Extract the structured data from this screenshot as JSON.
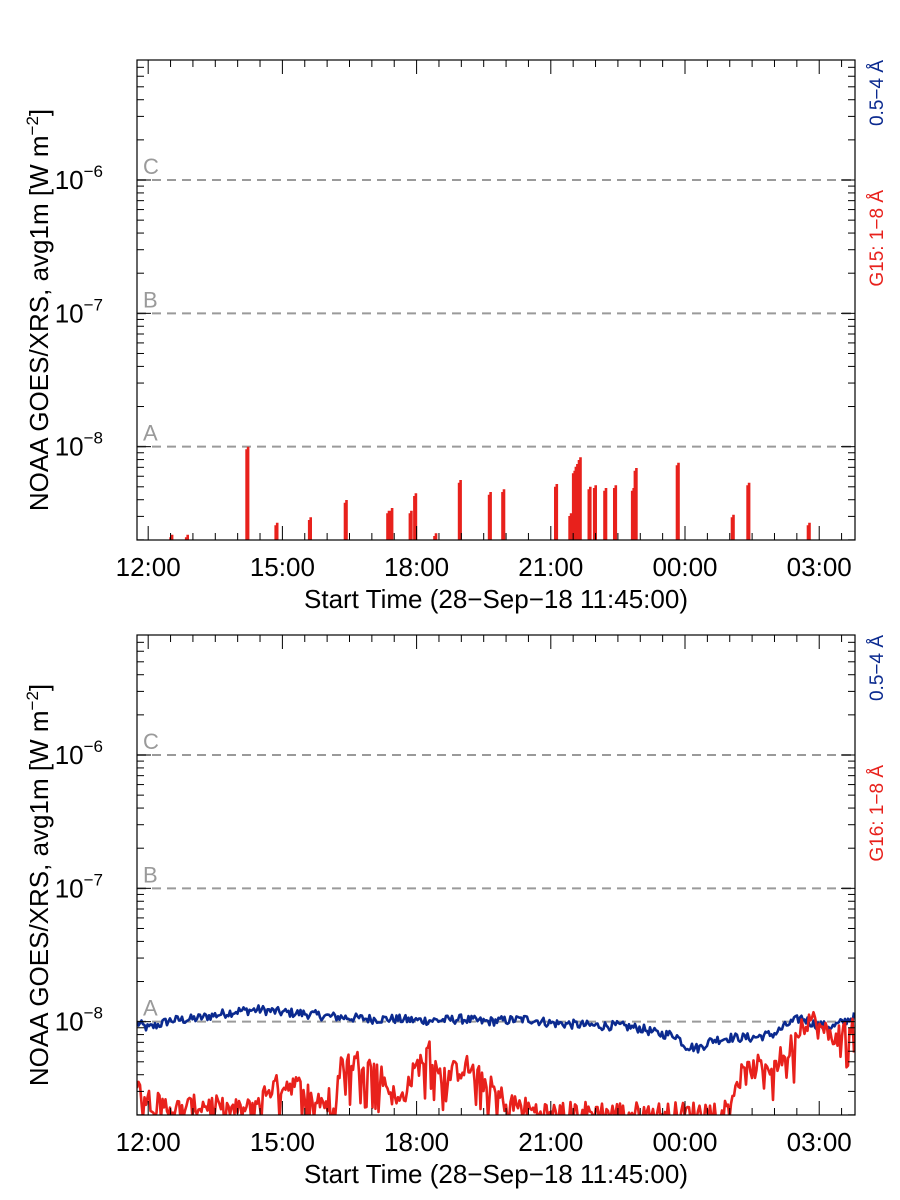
{
  "chart_data": [
    {
      "type": "line",
      "ylabel_main": "NOAA GOES/XRS, avg1m [W m",
      "ylabel_sup": "−2",
      "ylabel_close": "]",
      "xlabel": "Start Time (28−Sep−18 11:45:00)",
      "x_range_hours": [
        11.75,
        27.8
      ],
      "y_log_range": [
        -8.7,
        -5.1
      ],
      "x_ticks": [
        {
          "h": 12,
          "label": "12:00"
        },
        {
          "h": 15,
          "label": "15:00"
        },
        {
          "h": 18,
          "label": "18:00"
        },
        {
          "h": 21,
          "label": "21:00"
        },
        {
          "h": 24,
          "label": "00:00"
        },
        {
          "h": 27,
          "label": "03:00"
        }
      ],
      "y_ticks": [
        {
          "exp": -8,
          "base": "10",
          "sup": "−8"
        },
        {
          "exp": -7,
          "base": "10",
          "sup": "−7"
        },
        {
          "exp": -6,
          "base": "10",
          "sup": "−6"
        }
      ],
      "flare_levels": [
        {
          "exp": -8,
          "label": "A"
        },
        {
          "exp": -7,
          "label": "B"
        },
        {
          "exp": -6,
          "label": "C"
        }
      ],
      "right_labels": {
        "high": "0.5−4 Å",
        "low": "G15: 1−8 Å"
      },
      "series": [
        {
          "name": "G15: 1−8 Å",
          "color": "#e8211c",
          "kind": "spikes",
          "base_log": -8.7,
          "spikes": [
            [
              12.5,
              -8.68
            ],
            [
              12.85,
              -8.68
            ],
            [
              14.2,
              -8.02
            ],
            [
              14.85,
              -8.59
            ],
            [
              15.6,
              -8.55
            ],
            [
              16.4,
              -8.42
            ],
            [
              17.35,
              -8.5
            ],
            [
              17.42,
              -8.48
            ],
            [
              17.85,
              -8.5
            ],
            [
              17.95,
              -8.37
            ],
            [
              18.4,
              -8.67
            ],
            [
              18.95,
              -8.27
            ],
            [
              19.62,
              -8.36
            ],
            [
              19.92,
              -8.34
            ],
            [
              21.1,
              -8.3
            ],
            [
              21.42,
              -8.52
            ],
            [
              21.5,
              -8.2
            ],
            [
              21.56,
              -8.15
            ],
            [
              21.63,
              -8.1
            ],
            [
              21.85,
              -8.32
            ],
            [
              21.97,
              -8.31
            ],
            [
              22.2,
              -8.33
            ],
            [
              22.42,
              -8.31
            ],
            [
              22.82,
              -8.33
            ],
            [
              22.88,
              -8.18
            ],
            [
              23.82,
              -8.14
            ],
            [
              25.05,
              -8.53
            ],
            [
              25.4,
              -8.29
            ],
            [
              26.75,
              -8.59
            ]
          ]
        }
      ]
    },
    {
      "type": "line",
      "ylabel_main": "NOAA GOES/XRS, avg1m [W m",
      "ylabel_sup": "−2",
      "ylabel_close": "]",
      "xlabel": "Start Time (28−Sep−18 11:45:00)",
      "x_range_hours": [
        11.75,
        27.8
      ],
      "y_log_range": [
        -8.7,
        -5.1
      ],
      "x_ticks": [
        {
          "h": 12,
          "label": "12:00"
        },
        {
          "h": 15,
          "label": "15:00"
        },
        {
          "h": 18,
          "label": "18:00"
        },
        {
          "h": 21,
          "label": "21:00"
        },
        {
          "h": 24,
          "label": "00:00"
        },
        {
          "h": 27,
          "label": "03:00"
        }
      ],
      "y_ticks": [
        {
          "exp": -8,
          "base": "10",
          "sup": "−8"
        },
        {
          "exp": -7,
          "base": "10",
          "sup": "−7"
        },
        {
          "exp": -6,
          "base": "10",
          "sup": "−6"
        }
      ],
      "flare_levels": [
        {
          "exp": -8,
          "label": "A"
        },
        {
          "exp": -7,
          "label": "B"
        },
        {
          "exp": -6,
          "label": "C"
        }
      ],
      "right_labels": {
        "high": "0.5−4 Å",
        "low": "G16: 1−8 Å"
      },
      "series": [
        {
          "name": "0.5−4 Å",
          "color": "#0b2a8f",
          "kind": "noisy",
          "points": [
            [
              11.75,
              -8.01
            ],
            [
              12.0,
              -8.05
            ],
            [
              12.5,
              -7.99
            ],
            [
              13.0,
              -7.98
            ],
            [
              13.5,
              -7.95
            ],
            [
              14.0,
              -7.92
            ],
            [
              14.5,
              -7.91
            ],
            [
              15.0,
              -7.93
            ],
            [
              15.5,
              -7.94
            ],
            [
              16.0,
              -7.96
            ],
            [
              16.5,
              -7.97
            ],
            [
              17.0,
              -7.98
            ],
            [
              17.5,
              -7.98
            ],
            [
              18.0,
              -7.99
            ],
            [
              18.5,
              -7.99
            ],
            [
              19.0,
              -7.98
            ],
            [
              19.5,
              -8.0
            ],
            [
              20.0,
              -7.99
            ],
            [
              20.5,
              -7.98
            ],
            [
              21.0,
              -8.01
            ],
            [
              21.5,
              -8.02
            ],
            [
              22.0,
              -8.03
            ],
            [
              22.5,
              -8.03
            ],
            [
              23.0,
              -8.05
            ],
            [
              23.4,
              -8.09
            ],
            [
              23.8,
              -8.1
            ],
            [
              24.0,
              -8.18
            ],
            [
              24.3,
              -8.2
            ],
            [
              24.6,
              -8.14
            ],
            [
              25.0,
              -8.12
            ],
            [
              25.5,
              -8.12
            ],
            [
              26.0,
              -8.09
            ],
            [
              26.3,
              -8.02
            ],
            [
              26.6,
              -7.97
            ],
            [
              26.9,
              -8.02
            ],
            [
              27.3,
              -8.04
            ],
            [
              27.8,
              -7.96
            ]
          ],
          "noise": 0.035
        },
        {
          "name": "G16: 1−8 Å",
          "color": "#e8211c",
          "kind": "noisy",
          "points": [
            [
              11.75,
              -8.5
            ],
            [
              12.2,
              -8.62
            ],
            [
              12.7,
              -8.66
            ],
            [
              13.3,
              -8.62
            ],
            [
              13.7,
              -8.66
            ],
            [
              14.2,
              -8.67
            ],
            [
              14.7,
              -8.5
            ],
            [
              15.2,
              -8.46
            ],
            [
              15.7,
              -8.55
            ],
            [
              16.0,
              -8.62
            ],
            [
              16.3,
              -8.32
            ],
            [
              16.8,
              -8.29
            ],
            [
              17.2,
              -8.4
            ],
            [
              17.6,
              -8.62
            ],
            [
              18.0,
              -8.34
            ],
            [
              18.3,
              -8.22
            ],
            [
              18.6,
              -8.42
            ],
            [
              19.1,
              -8.33
            ],
            [
              19.6,
              -8.48
            ],
            [
              20.0,
              -8.6
            ],
            [
              20.5,
              -8.66
            ],
            [
              21.0,
              -8.69
            ],
            [
              22.0,
              -8.68
            ],
            [
              23.0,
              -8.69
            ],
            [
              24.0,
              -8.69
            ],
            [
              24.9,
              -8.66
            ],
            [
              25.2,
              -8.42
            ],
            [
              25.6,
              -8.34
            ],
            [
              26.0,
              -8.32
            ],
            [
              26.3,
              -8.22
            ],
            [
              26.6,
              -8.02
            ],
            [
              26.8,
              -7.97
            ],
            [
              27.0,
              -8.05
            ],
            [
              27.3,
              -8.12
            ],
            [
              27.6,
              -8.05
            ],
            [
              27.8,
              -8.03
            ]
          ],
          "noise": 0.09
        }
      ]
    }
  ]
}
